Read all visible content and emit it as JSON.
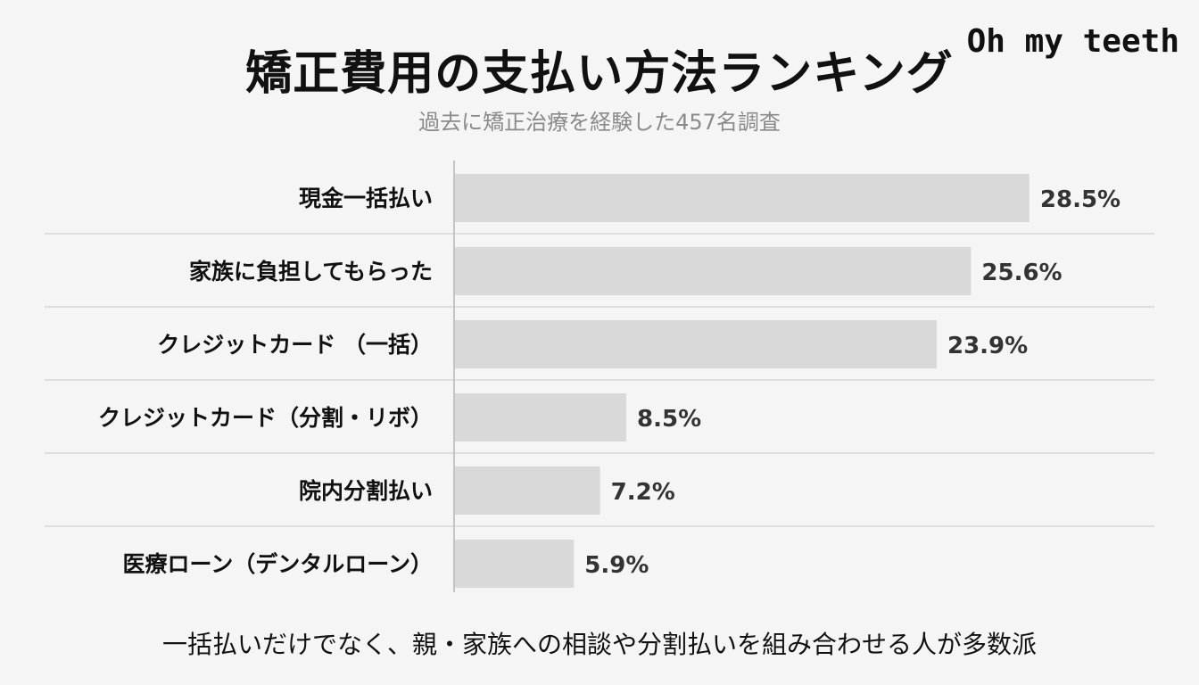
{
  "brand": "Oh my teeth",
  "colors": {
    "background": "#f5f5f5",
    "bar": "#d9d9d9",
    "grid": "#d6d6d6",
    "text": "#111111",
    "subtitle": "#8a8a8a"
  },
  "footer": "一括払いだけでなく、親・家族への相談や分割払いを組み合わせる人が多数派",
  "chart_data": {
    "type": "bar",
    "orientation": "horizontal",
    "title": "矯正費用の支払い方法ランキング",
    "subtitle": "過去に矯正治療を経験した457名調査",
    "categories": [
      "現金一括払い",
      "家族に負担してもらった",
      "クレジットカード （一括）",
      "クレジットカード（分割・リボ）",
      "院内分割払い",
      "医療ローン（デンタルローン）"
    ],
    "values": [
      28.5,
      25.6,
      23.9,
      8.5,
      7.2,
      5.9
    ],
    "value_labels": [
      "28.5%",
      "25.6%",
      "23.9%",
      "8.5%",
      "7.2%",
      "5.9%"
    ],
    "unit": "%",
    "xlim": [
      0,
      37.4
    ],
    "grid": true,
    "legend": "none"
  }
}
